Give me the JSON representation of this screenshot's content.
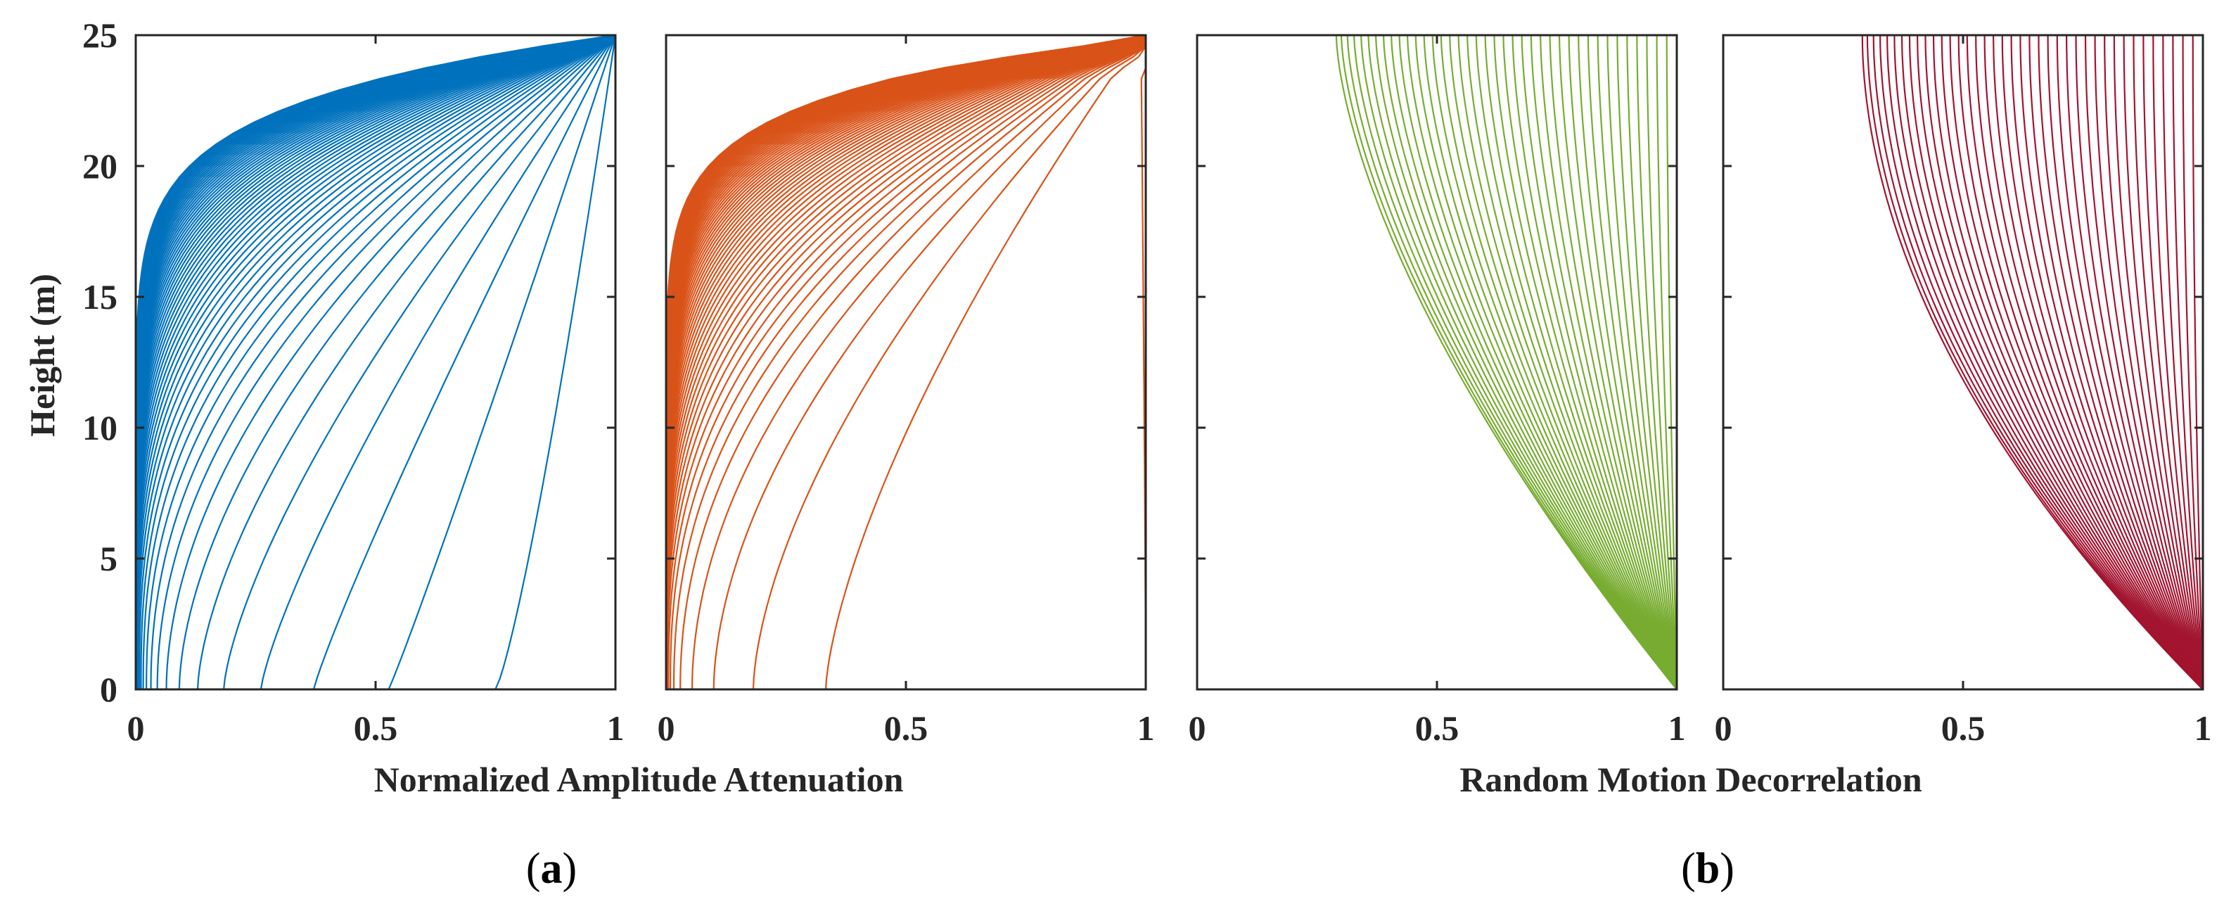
{
  "chart_data": [
    {
      "type": "line",
      "panel": "a-left",
      "color": "#0072BD",
      "xlabel": "",
      "ylabel": "Height (m)",
      "xlim": [
        0,
        1
      ],
      "ylim": [
        0,
        25
      ],
      "xticks": [
        "0",
        "0.5",
        "1"
      ],
      "yticks": [
        "0",
        "5",
        "10",
        "15",
        "20",
        "25"
      ],
      "series_count": 60,
      "pattern": "curve family: each line runs from x=1 at height 25 m down to a decreasing bottom value x0 at height 0 m; lines are densely packed near x=0",
      "bottom_x_values": [
        0.71,
        0.52,
        0.37,
        0.27,
        0.19,
        0.14,
        0.1,
        0.07,
        0.05,
        0.035,
        0.025,
        0.018,
        0.013,
        0.009,
        0.006,
        0.004,
        0.003,
        0.002,
        0.001,
        0.0
      ]
    },
    {
      "type": "line",
      "panel": "a-right",
      "color": "#D95319",
      "xlabel": "",
      "ylabel": "",
      "xlim": [
        0,
        1
      ],
      "ylim": [
        0,
        25
      ],
      "xticks": [
        "0",
        "0.5",
        "1"
      ],
      "yticks": [],
      "series_count": 60,
      "pattern": "curve family: each line runs from near x=1 at the top down to a decreasing bottom value x0 at height 0 m; lines are densely packed near x=0",
      "bottom_x_values": [
        1.0,
        0.45,
        0.21,
        0.1,
        0.05,
        0.025,
        0.012,
        0.006,
        0.003,
        0.0
      ]
    },
    {
      "type": "line",
      "panel": "b-left",
      "color": "#77AC30",
      "xlabel": "",
      "ylabel": "",
      "xlim": [
        0,
        1
      ],
      "ylim": [
        0,
        25
      ],
      "xticks": [
        "0",
        "0.5",
        "1"
      ],
      "yticks": [],
      "series_count": 40,
      "pattern": "curve family: all lines start at x=1 at height 0 m and fan out to top values between 0.29 and 1 at height 25 m",
      "top_x_values": [
        0.29,
        1.0
      ]
    },
    {
      "type": "line",
      "panel": "b-right",
      "color": "#A2142F",
      "xlabel": "",
      "ylabel": "",
      "xlim": [
        0,
        1
      ],
      "ylim": [
        0,
        25
      ],
      "xticks": [
        "0",
        "0.5",
        "1"
      ],
      "yticks": [],
      "series_count": 40,
      "pattern": "curve family: all lines start at x=1 at height 0 m and fan out to top values between 0.29 and 1 at height 25 m",
      "top_x_values": [
        0.29,
        1.0
      ]
    }
  ],
  "figure": {
    "xlabel_a": "Normalized Amplitude Attenuation",
    "xlabel_b": "Random Motion Decorrelation",
    "panel_a": {
      "open": "(",
      "letter": "a",
      "close": ")"
    },
    "panel_b": {
      "open": "(",
      "letter": "b",
      "close": ")"
    }
  }
}
